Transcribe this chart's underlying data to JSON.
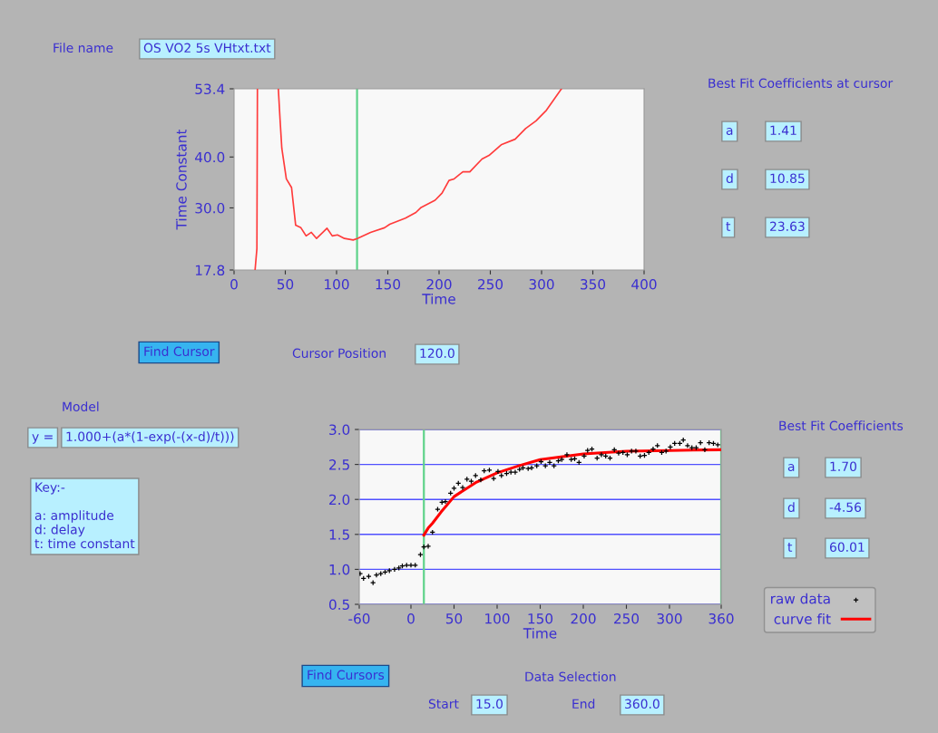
{
  "chart_data": [
    {
      "type": "line",
      "xlabel": "Time",
      "ylabel": "Time Constant",
      "xlim": [
        0,
        400
      ],
      "xticks": [
        0,
        50,
        100,
        150,
        200,
        250,
        300,
        350,
        400
      ],
      "ylim": [
        17.8,
        53.4
      ],
      "yticks": [
        17.8,
        {
          "value": 30,
          "label": "30.0"
        },
        {
          "value": 40,
          "label": "40.0"
        },
        53.4
      ],
      "grid": false,
      "legend": false,
      "marker": "none",
      "line_style": "solid",
      "series": [
        {
          "color": "#ff3b3b",
          "x": [
            20.5,
            22.3,
            22.8,
            30,
            43.2,
            44.9,
            46.6,
            51,
            56.1,
            60.1,
            65.2,
            70.3,
            75.4,
            80.5,
            90.7,
            95.8,
            100.9,
            107.7,
            116.2,
            120.3,
            133.2,
            146.8,
            151.9,
            167.2,
            177.4,
            182.5,
            196.1,
            202.9,
            209.7,
            214.7,
            223.2,
            230.0,
            241.9,
            248.7,
            260.6,
            274.2,
            284.4,
            294.6,
            304.8,
            319.4
          ],
          "values": [
            17.8,
            22.0,
            53.4,
            null,
            53.4,
            47.3,
            41.7,
            35.7,
            34.0,
            26.6,
            26.1,
            24.5,
            25.2,
            24.0,
            26.0,
            24.5,
            24.7,
            24.0,
            23.7,
            24.0,
            25.2,
            26.1,
            26.8,
            28.0,
            29.1,
            30.1,
            31.5,
            32.9,
            35.4,
            35.7,
            37.1,
            37.1,
            39.6,
            40.3,
            42.4,
            43.5,
            45.6,
            47.1,
            49.2,
            53.4
          ]
        }
      ],
      "ref_lines": [
        {
          "axis": "x",
          "value": 120,
          "color": "#5fd38a"
        }
      ],
      "annotations": [
        "File name",
        "OS VO2 5s VHtxt.txt",
        "Best Fit Coefficients at cursor",
        "a",
        "1.41",
        "d",
        "10.85",
        "t",
        "23.63",
        "Find Cursor",
        "Cursor Position",
        "120.0"
      ]
    },
    {
      "type": "scatter",
      "xlabel": "Time",
      "xlim": [
        -60,
        360
      ],
      "xticks": [
        -60,
        0,
        50,
        100,
        150,
        200,
        250,
        300,
        360
      ],
      "ylim": [
        0.5,
        3.0
      ],
      "yticks": [
        {
          "value": 0.5,
          "label": "0.5"
        },
        {
          "value": 1,
          "label": "1.0"
        },
        {
          "value": 1.5,
          "label": "1.5"
        },
        {
          "value": 2,
          "label": "2.0"
        },
        {
          "value": 2.5,
          "label": "2.5"
        },
        {
          "value": 3,
          "label": "3.0"
        }
      ],
      "grid": "y",
      "legend": "right",
      "series": [
        {
          "name": "raw data",
          "type": "scatter",
          "marker": "cross",
          "color": "#000000",
          "x": [
            -59,
            -55,
            -49,
            -44,
            -40,
            -35,
            -30,
            -25,
            -19,
            -14,
            -10,
            -5,
            0,
            5,
            11,
            15,
            20,
            25,
            31,
            36,
            40,
            46,
            50,
            55,
            60,
            65,
            70,
            75,
            81,
            85,
            91,
            96,
            101,
            105,
            111,
            116,
            121,
            126,
            130,
            136,
            140,
            146,
            151,
            156,
            161,
            166,
            171,
            175,
            181,
            186,
            190,
            195,
            201,
            205,
            210,
            216,
            221,
            226,
            231,
            236,
            241,
            246,
            251,
            256,
            261,
            266,
            271,
            276,
            281,
            286,
            291,
            296,
            301,
            306,
            312,
            316,
            321,
            326,
            331,
            336,
            341,
            346,
            351,
            356
          ],
          "values": [
            0.94,
            0.87,
            0.9,
            0.81,
            0.92,
            0.94,
            0.96,
            0.98,
            1.0,
            1.02,
            1.05,
            1.06,
            1.06,
            1.06,
            1.21,
            1.32,
            1.33,
            1.53,
            1.86,
            1.96,
            1.97,
            2.09,
            2.16,
            2.23,
            2.17,
            2.29,
            2.26,
            2.34,
            2.28,
            2.41,
            2.42,
            2.3,
            2.4,
            2.34,
            2.37,
            2.39,
            2.39,
            2.43,
            2.45,
            2.44,
            2.45,
            2.48,
            2.54,
            2.48,
            2.53,
            2.48,
            2.55,
            2.57,
            2.64,
            2.57,
            2.58,
            2.53,
            2.62,
            2.7,
            2.72,
            2.59,
            2.64,
            2.62,
            2.59,
            2.71,
            2.66,
            2.67,
            2.64,
            2.69,
            2.69,
            2.62,
            2.63,
            2.67,
            2.72,
            2.77,
            2.67,
            2.69,
            2.75,
            2.8,
            2.8,
            2.85,
            2.77,
            2.74,
            2.74,
            2.81,
            2.71,
            2.81,
            2.8,
            2.78
          ]
        },
        {
          "name": "curve fit",
          "type": "line",
          "marker": "none",
          "line_style": "solid",
          "color": "#ff0000",
          "x": [
            15,
            20,
            25,
            35,
            50,
            75,
            100,
            125,
            150,
            200,
            250,
            300,
            360
          ],
          "values": [
            1.49,
            1.59,
            1.66,
            1.82,
            2.04,
            2.24,
            2.38,
            2.48,
            2.57,
            2.65,
            2.69,
            2.7,
            2.71
          ]
        }
      ],
      "ref_lines": [
        {
          "axis": "x",
          "value": 15,
          "color": "#5fd38a"
        },
        {
          "axis": "x",
          "value": 360,
          "color": "#5fd38a"
        }
      ],
      "annotations": [
        "Model",
        "y =",
        "1.000+(a*(1-exp(-(x-d)/t)))",
        "Key:-\n\na: amplitude\nd: delay\nt: time constant",
        "Best Fit Coefficients",
        "a",
        "1.70",
        "d",
        "-4.56",
        "t",
        "60.01",
        "Find Cursors",
        "Data Selection",
        "Start",
        "15.0",
        "End",
        "360.0"
      ]
    }
  ]
}
